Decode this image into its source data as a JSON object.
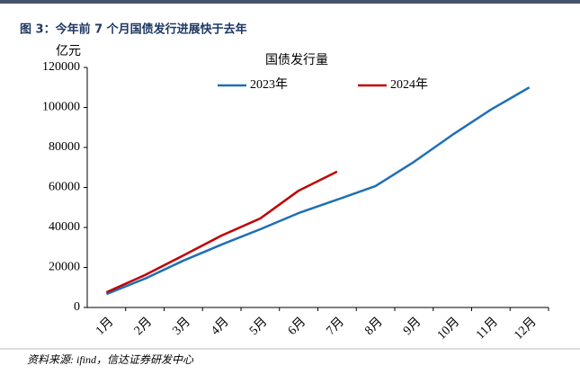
{
  "chart_data": {
    "type": "line",
    "title": "图 3：今年前 7 个月国债发行进展快于去年",
    "y_unit": "亿元",
    "legend_title": "国债发行量",
    "source": "资料来源: ifind，信达证券研发中心",
    "categories": [
      "1月",
      "2月",
      "3月",
      "4月",
      "5月",
      "6月",
      "7月",
      "8月",
      "9月",
      "10月",
      "11月",
      "12月"
    ],
    "series": [
      {
        "name": "2023年",
        "color": "#1f6fb5",
        "values": [
          6700,
          14400,
          23400,
          31500,
          39100,
          47200,
          53900,
          60700,
          72800,
          86300,
          98900,
          110000
        ]
      },
      {
        "name": "2024年",
        "color": "#c00000",
        "values": [
          7600,
          16200,
          26000,
          36000,
          44500,
          58400,
          67900,
          null,
          null,
          null,
          null,
          null
        ]
      }
    ],
    "ylim": [
      0,
      120000
    ],
    "yticks": [
      0,
      20000,
      40000,
      60000,
      80000,
      100000,
      120000
    ]
  }
}
